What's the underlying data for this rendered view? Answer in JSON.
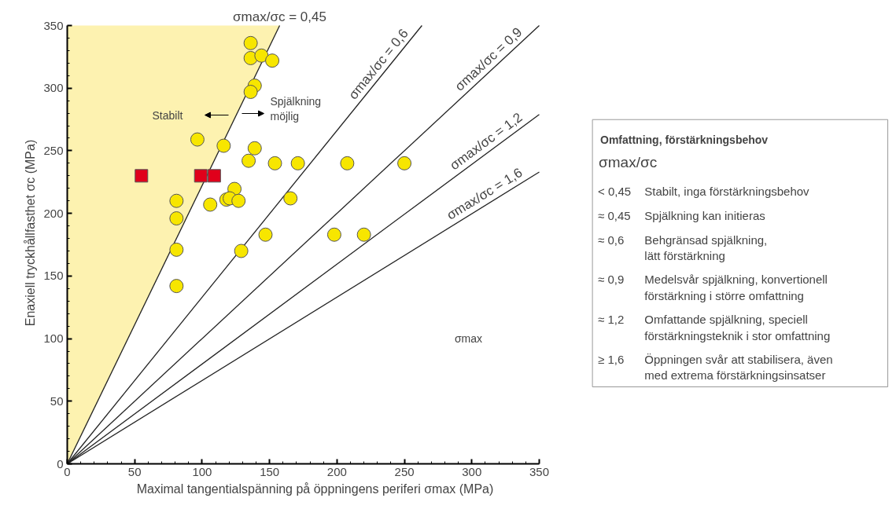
{
  "chart_data": [
    {
      "type": "scatter",
      "xlabel": "Maximal tangentialspänning på öppningens periferi σmax (MPa)",
      "ylabel": "Enaxiell tryckhållfasthet σc (MPa)",
      "xlim": [
        0,
        350
      ],
      "ylim": [
        0,
        350
      ],
      "xticks": [
        0,
        {
          "value": 10,
          "label": null
        },
        {
          "value": 20,
          "label": null
        },
        {
          "value": 30,
          "label": null
        },
        {
          "value": 40,
          "label": null
        },
        50,
        {
          "value": 60,
          "label": null
        },
        {
          "value": 70,
          "label": null
        },
        {
          "value": 80,
          "label": null
        },
        {
          "value": 90,
          "label": null
        },
        100,
        {
          "value": 110,
          "label": null
        },
        {
          "value": 120,
          "label": null
        },
        {
          "value": 130,
          "label": null
        },
        {
          "value": 140,
          "label": null
        },
        150,
        {
          "value": 160,
          "label": null
        },
        {
          "value": 170,
          "label": null
        },
        {
          "value": 180,
          "label": null
        },
        {
          "value": 190,
          "label": null
        },
        200,
        {
          "value": 210,
          "label": null
        },
        {
          "value": 220,
          "label": null
        },
        {
          "value": 230,
          "label": null
        },
        {
          "value": 240,
          "label": null
        },
        250,
        {
          "value": 260,
          "label": null
        },
        {
          "value": 270,
          "label": null
        },
        {
          "value": 280,
          "label": null
        },
        {
          "value": 290,
          "label": null
        },
        300,
        {
          "value": 310,
          "label": null
        },
        {
          "value": 320,
          "label": null
        },
        {
          "value": 330,
          "label": null
        },
        {
          "value": 340,
          "label": null
        },
        350
      ],
      "yticks": [
        0,
        {
          "value": 10,
          "label": null
        },
        {
          "value": 20,
          "label": null
        },
        {
          "value": 30,
          "label": null
        },
        {
          "value": 40,
          "label": null
        },
        50,
        {
          "value": 60,
          "label": null
        },
        {
          "value": 70,
          "label": null
        },
        {
          "value": 80,
          "label": null
        },
        {
          "value": 90,
          "label": null
        },
        100,
        {
          "value": 110,
          "label": null
        },
        {
          "value": 120,
          "label": null
        },
        {
          "value": 130,
          "label": null
        },
        {
          "value": 140,
          "label": null
        },
        150,
        {
          "value": 160,
          "label": null
        },
        {
          "value": 170,
          "label": null
        },
        {
          "value": 180,
          "label": null
        },
        {
          "value": 190,
          "label": null
        },
        200,
        {
          "value": 210,
          "label": null
        },
        {
          "value": 220,
          "label": null
        },
        {
          "value": 230,
          "label": null
        },
        {
          "value": 240,
          "label": null
        },
        250,
        {
          "value": 260,
          "label": null
        },
        {
          "value": 270,
          "label": null
        },
        {
          "value": 280,
          "label": null
        },
        {
          "value": 290,
          "label": null
        },
        300,
        {
          "value": 310,
          "label": null
        },
        {
          "value": 320,
          "label": null
        },
        {
          "value": 330,
          "label": null
        },
        {
          "value": 340,
          "label": null
        },
        350
      ],
      "grid": false,
      "series": [
        {
          "type": "area",
          "name": "σmax/σc = 0,45",
          "color": "#fdf2b0",
          "x": [
            0,
            157.5
          ],
          "values": [
            0,
            350
          ]
        },
        {
          "type": "line",
          "name": "σmax/σc = 0,6",
          "color": "#222222",
          "x": [
            0,
            263
          ],
          "values": [
            0,
            350
          ]
        },
        {
          "type": "line",
          "name": "σmax/σc = 0,9",
          "color": "#222222",
          "x": [
            0,
            350
          ],
          "values": [
            0,
            350
          ]
        },
        {
          "type": "line",
          "name": "σmax/σc = 1,2",
          "color": "#222222",
          "x": [
            0,
            350
          ],
          "values": [
            0,
            279
          ]
        },
        {
          "type": "line",
          "name": "σmax/σc = 1,6",
          "color": "#222222",
          "x": [
            0,
            350
          ],
          "values": [
            0,
            233
          ]
        },
        {
          "type": "scatter",
          "marker": "circle",
          "color": "#f7e600",
          "x": [
            136,
            136,
            144,
            152,
            139,
            136,
            96.5,
            116,
            139,
            134.5,
            154,
            171,
            124,
            118,
            120.5,
            127,
            106,
            81,
            81,
            165.5,
            147,
            81,
            129,
            81,
            207.6,
            250,
            198,
            220
          ],
          "values": [
            336,
            324,
            326,
            322,
            302,
            297,
            259,
            254,
            252,
            242,
            240,
            240,
            219.5,
            211,
            212,
            210,
            207,
            210,
            196,
            212,
            183,
            171,
            170,
            142,
            240,
            240,
            183,
            183
          ]
        },
        {
          "type": "scatter",
          "marker": "square",
          "color": "#e0001b",
          "x": [
            55,
            99,
            109
          ],
          "values": [
            230,
            230,
            230
          ]
        }
      ],
      "annotations": [
        "Stabilt",
        "Spjälkning\nmöjlig",
        "σmax"
      ]
    },
    {
      "type": "other",
      "title": "Omfattning, förstärkningsbehov",
      "subtitle": "σmax/σc",
      "annotations": [
        "< 0,45",
        "Stabilt, inga förstärkningsbehov",
        "≈ 0,45",
        "Spjälkning kan initieras",
        "≈ 0,6",
        "Behgränsad spjälkning,\nlätt förstärkning",
        "≈ 0,9",
        "Medelsvår spjälkning, konvertionell\nförstärkning i större omfattning",
        "≈ 1,2",
        "Omfattande spjälkning, speciell\nförstärkningsteknik i stor omfattning",
        "≥ 1,6",
        "Öppningen svår att stabilisera, även\nmed extrema förstärkningsinsatser"
      ]
    }
  ]
}
